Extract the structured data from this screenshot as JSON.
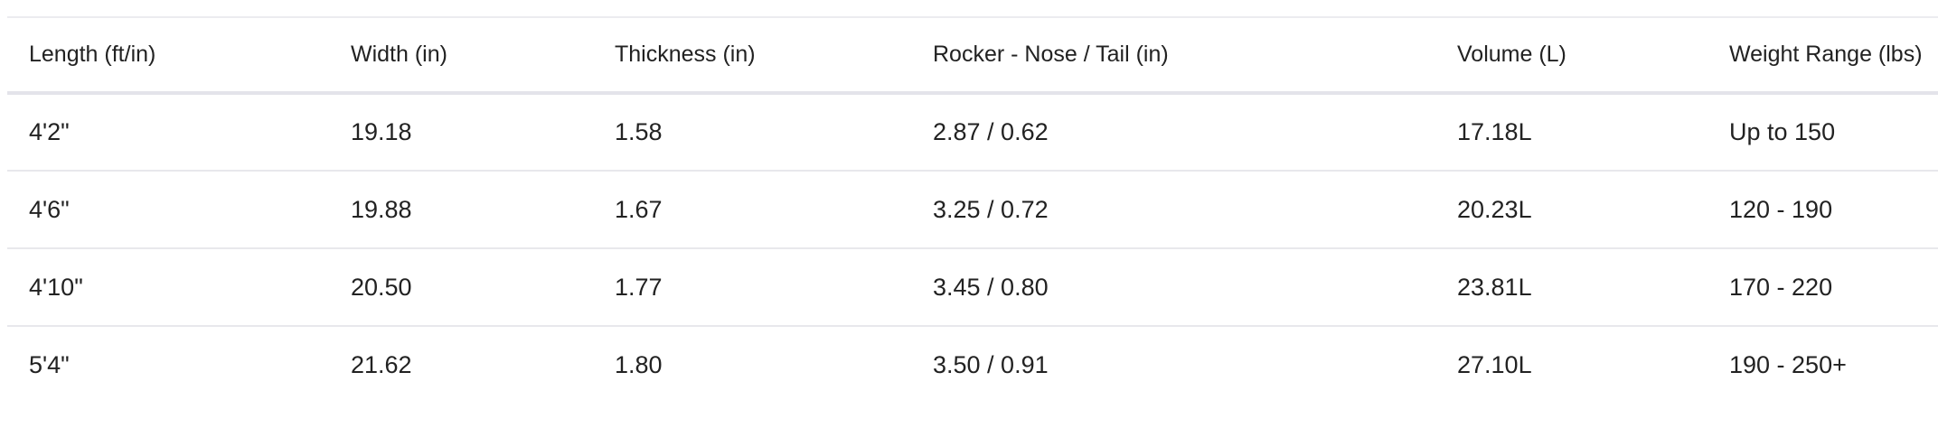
{
  "table": {
    "headers": [
      "Length (ft/in)",
      "Width (in)",
      "Thickness (in)",
      "Rocker - Nose / Tail (in)",
      "Volume (L)",
      "Weight Range (lbs)"
    ],
    "rows": [
      [
        "4'2\"",
        "19.18",
        "1.58",
        "2.87 / 0.62",
        "17.18L",
        "Up to 150"
      ],
      [
        "4'6\"",
        "19.88",
        "1.67",
        "3.25 / 0.72",
        "20.23L",
        "120 - 190"
      ],
      [
        "4'10\"",
        "20.50",
        "1.77",
        "3.45 / 0.80",
        "23.81L",
        "170 - 220"
      ],
      [
        "5'4\"",
        "21.62",
        "1.80",
        "3.50 / 0.91",
        "27.10L",
        "190 - 250+"
      ]
    ]
  }
}
